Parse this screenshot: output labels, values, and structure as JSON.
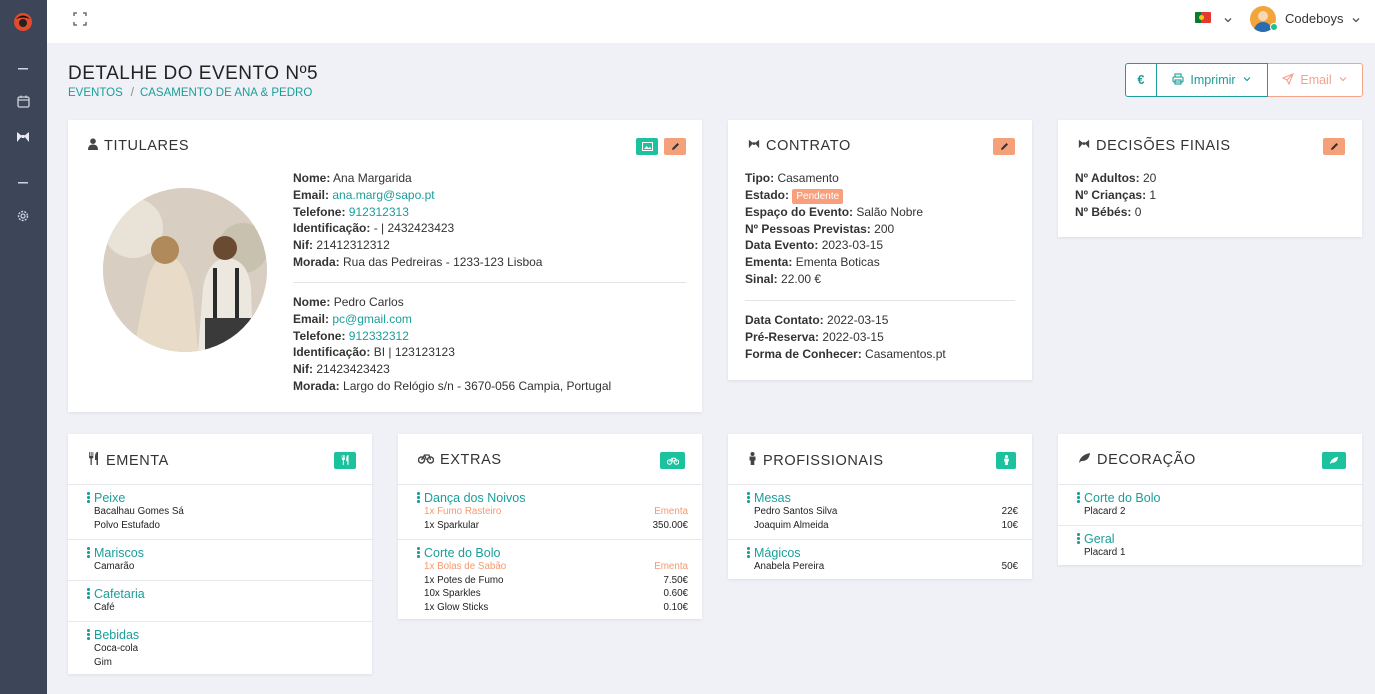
{
  "topbar": {
    "username": "Codeboys"
  },
  "page": {
    "title": "DETALHE DO EVENTO Nº5",
    "breadcrumb": [
      "EVENTOS",
      "CASAMENTO DE ANA & PEDRO"
    ],
    "breadcrumb_sep": "/"
  },
  "actions": {
    "euro": "€",
    "print": "Imprimir",
    "email": "Email"
  },
  "titulares": {
    "title": "TITULARES",
    "person1": {
      "nome_label": "Nome:",
      "nome": "Ana Margarida",
      "email_label": "Email:",
      "email": "ana.marg@sapo.pt",
      "telefone_label": "Telefone:",
      "telefone": "912312313",
      "id_label": "Identificação:",
      "id": "- | 2432423423",
      "nif_label": "Nif:",
      "nif": "21412312312",
      "morada_label": "Morada:",
      "morada": "Rua das Pedreiras - 1233-123 Lisboa"
    },
    "person2": {
      "nome_label": "Nome:",
      "nome": "Pedro Carlos",
      "email_label": "Email:",
      "email": "pc@gmail.com",
      "telefone_label": "Telefone:",
      "telefone": "912332312",
      "id_label": "Identificação:",
      "id": "BI | 123123123",
      "nif_label": "Nif:",
      "nif": "21423423423",
      "morada_label": "Morada:",
      "morada": "Largo do Relógio s/n - 3670-056 Campia, Portugal"
    }
  },
  "contrato": {
    "title": "CONTRATO",
    "tipo_label": "Tipo:",
    "tipo": "Casamento",
    "estado_label": "Estado:",
    "estado": "Pendente",
    "espaco_label": "Espaço do Evento:",
    "espaco": "Salão Nobre",
    "pessoas_label": "Nº Pessoas Previstas:",
    "pessoas": "200",
    "data_evento_label": "Data Evento:",
    "data_evento": "2023-03-15",
    "ementa_label": "Ementa:",
    "ementa": "Ementa Boticas",
    "sinal_label": "Sinal:",
    "sinal": "22.00 €",
    "data_contato_label": "Data Contato:",
    "data_contato": "2022-03-15",
    "pre_reserva_label": "Pré-Reserva:",
    "pre_reserva": "2022-03-15",
    "forma_label": "Forma de Conhecer:",
    "forma": "Casamentos.pt"
  },
  "decisoes": {
    "title": "DECISÕES FINAIS",
    "adultos_label": "Nº Adultos:",
    "adultos": "20",
    "criancas_label": "Nº Crianças:",
    "criancas": "1",
    "bebes_label": "Nº Bébés:",
    "bebes": "0"
  },
  "ementa": {
    "title": "EMENTA",
    "sections": [
      {
        "name": "Peixe",
        "items": [
          "Bacalhau Gomes Sá",
          "Polvo Estufado"
        ]
      },
      {
        "name": "Mariscos",
        "items": [
          "Camarão"
        ]
      },
      {
        "name": "Cafetaria",
        "items": [
          "Café"
        ]
      },
      {
        "name": "Bebidas",
        "items": [
          "Coca-cola",
          "Gim"
        ]
      }
    ]
  },
  "extras": {
    "title": "EXTRAS",
    "sections": [
      {
        "name": "Dança dos Noivos",
        "items": [
          {
            "label": "1x Fumo Rasteiro",
            "value": "Ementa",
            "highlight": true
          },
          {
            "label": "1x Sparkular",
            "value": "350.00€"
          }
        ]
      },
      {
        "name": "Corte do Bolo",
        "items": [
          {
            "label": "1x Bolas de Sabão",
            "value": "Ementa",
            "highlight": true
          },
          {
            "label": "1x Potes de Fumo",
            "value": "7.50€"
          },
          {
            "label": "10x Sparkles",
            "value": "0.60€"
          },
          {
            "label": "1x Glow Sticks",
            "value": "0.10€"
          }
        ]
      }
    ]
  },
  "profissionais": {
    "title": "PROFISSIONAIS",
    "sections": [
      {
        "name": "Mesas",
        "items": [
          {
            "label": "Pedro Santos Silva",
            "value": "22€"
          },
          {
            "label": "Joaquim Almeida",
            "value": "10€"
          }
        ]
      },
      {
        "name": "Mágicos",
        "items": [
          {
            "label": "Anabela Pereira",
            "value": "50€"
          }
        ]
      }
    ]
  },
  "decoracao": {
    "title": "DECORAÇÃO",
    "sections": [
      {
        "name": "Corte do Bolo",
        "items": [
          "Placard 2"
        ]
      },
      {
        "name": "Geral",
        "items": [
          "Placard 1"
        ]
      }
    ]
  },
  "colors": {
    "teal": "#1a9e9a",
    "orange": "#f4a17a",
    "green": "#1bc29d",
    "sidebar": "#3c4658"
  },
  "icons": [
    "logo-icon",
    "minus-icon",
    "calendar-icon",
    "bowtie-icon",
    "gear-icon",
    "expand-icon",
    "user-icon",
    "image-icon",
    "pencil-icon",
    "printer-icon",
    "send-icon",
    "fork-knife-icon",
    "bicycle-icon",
    "person-icon",
    "leaf-icon",
    "kebab-icon",
    "chevron-down-icon"
  ]
}
